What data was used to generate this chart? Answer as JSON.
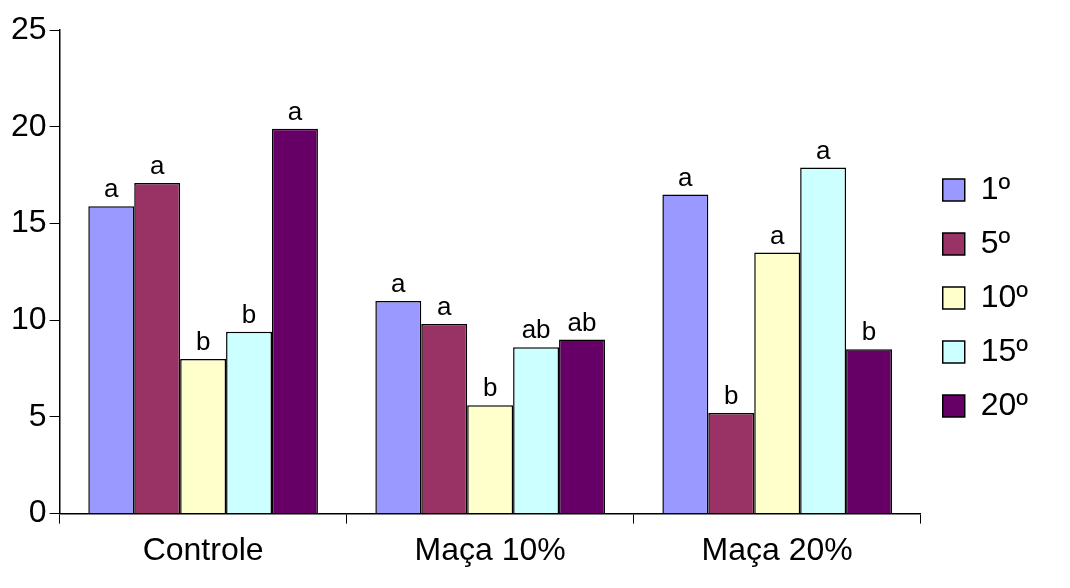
{
  "chart_data": {
    "type": "bar",
    "categories": [
      "Controle",
      "Maça 10%",
      "Maça 20%"
    ],
    "series": [
      {
        "name": "1º",
        "color": "#9999ff",
        "values": [
          15.9,
          11.0,
          16.5
        ],
        "value_labels": [
          "a",
          "a",
          "a"
        ]
      },
      {
        "name": "5º",
        "color": "#993366",
        "values": [
          17.1,
          9.8,
          5.2
        ],
        "value_labels": [
          "a",
          "a",
          "b"
        ]
      },
      {
        "name": "10º",
        "color": "#ffffcc",
        "values": [
          8.0,
          5.6,
          13.5
        ],
        "value_labels": [
          "b",
          "b",
          "a"
        ]
      },
      {
        "name": "15º",
        "color": "#ccffff",
        "values": [
          9.4,
          8.6,
          17.9
        ],
        "value_labels": [
          "b",
          "ab",
          "a"
        ]
      },
      {
        "name": "20º",
        "color": "#660066",
        "values": [
          19.9,
          9.0,
          8.5
        ],
        "value_labels": [
          "a",
          "ab",
          "b"
        ]
      }
    ],
    "ylim": [
      0,
      25
    ],
    "yticks": [
      0,
      5,
      10,
      15,
      20,
      25
    ],
    "grid": false,
    "legend": "right"
  }
}
